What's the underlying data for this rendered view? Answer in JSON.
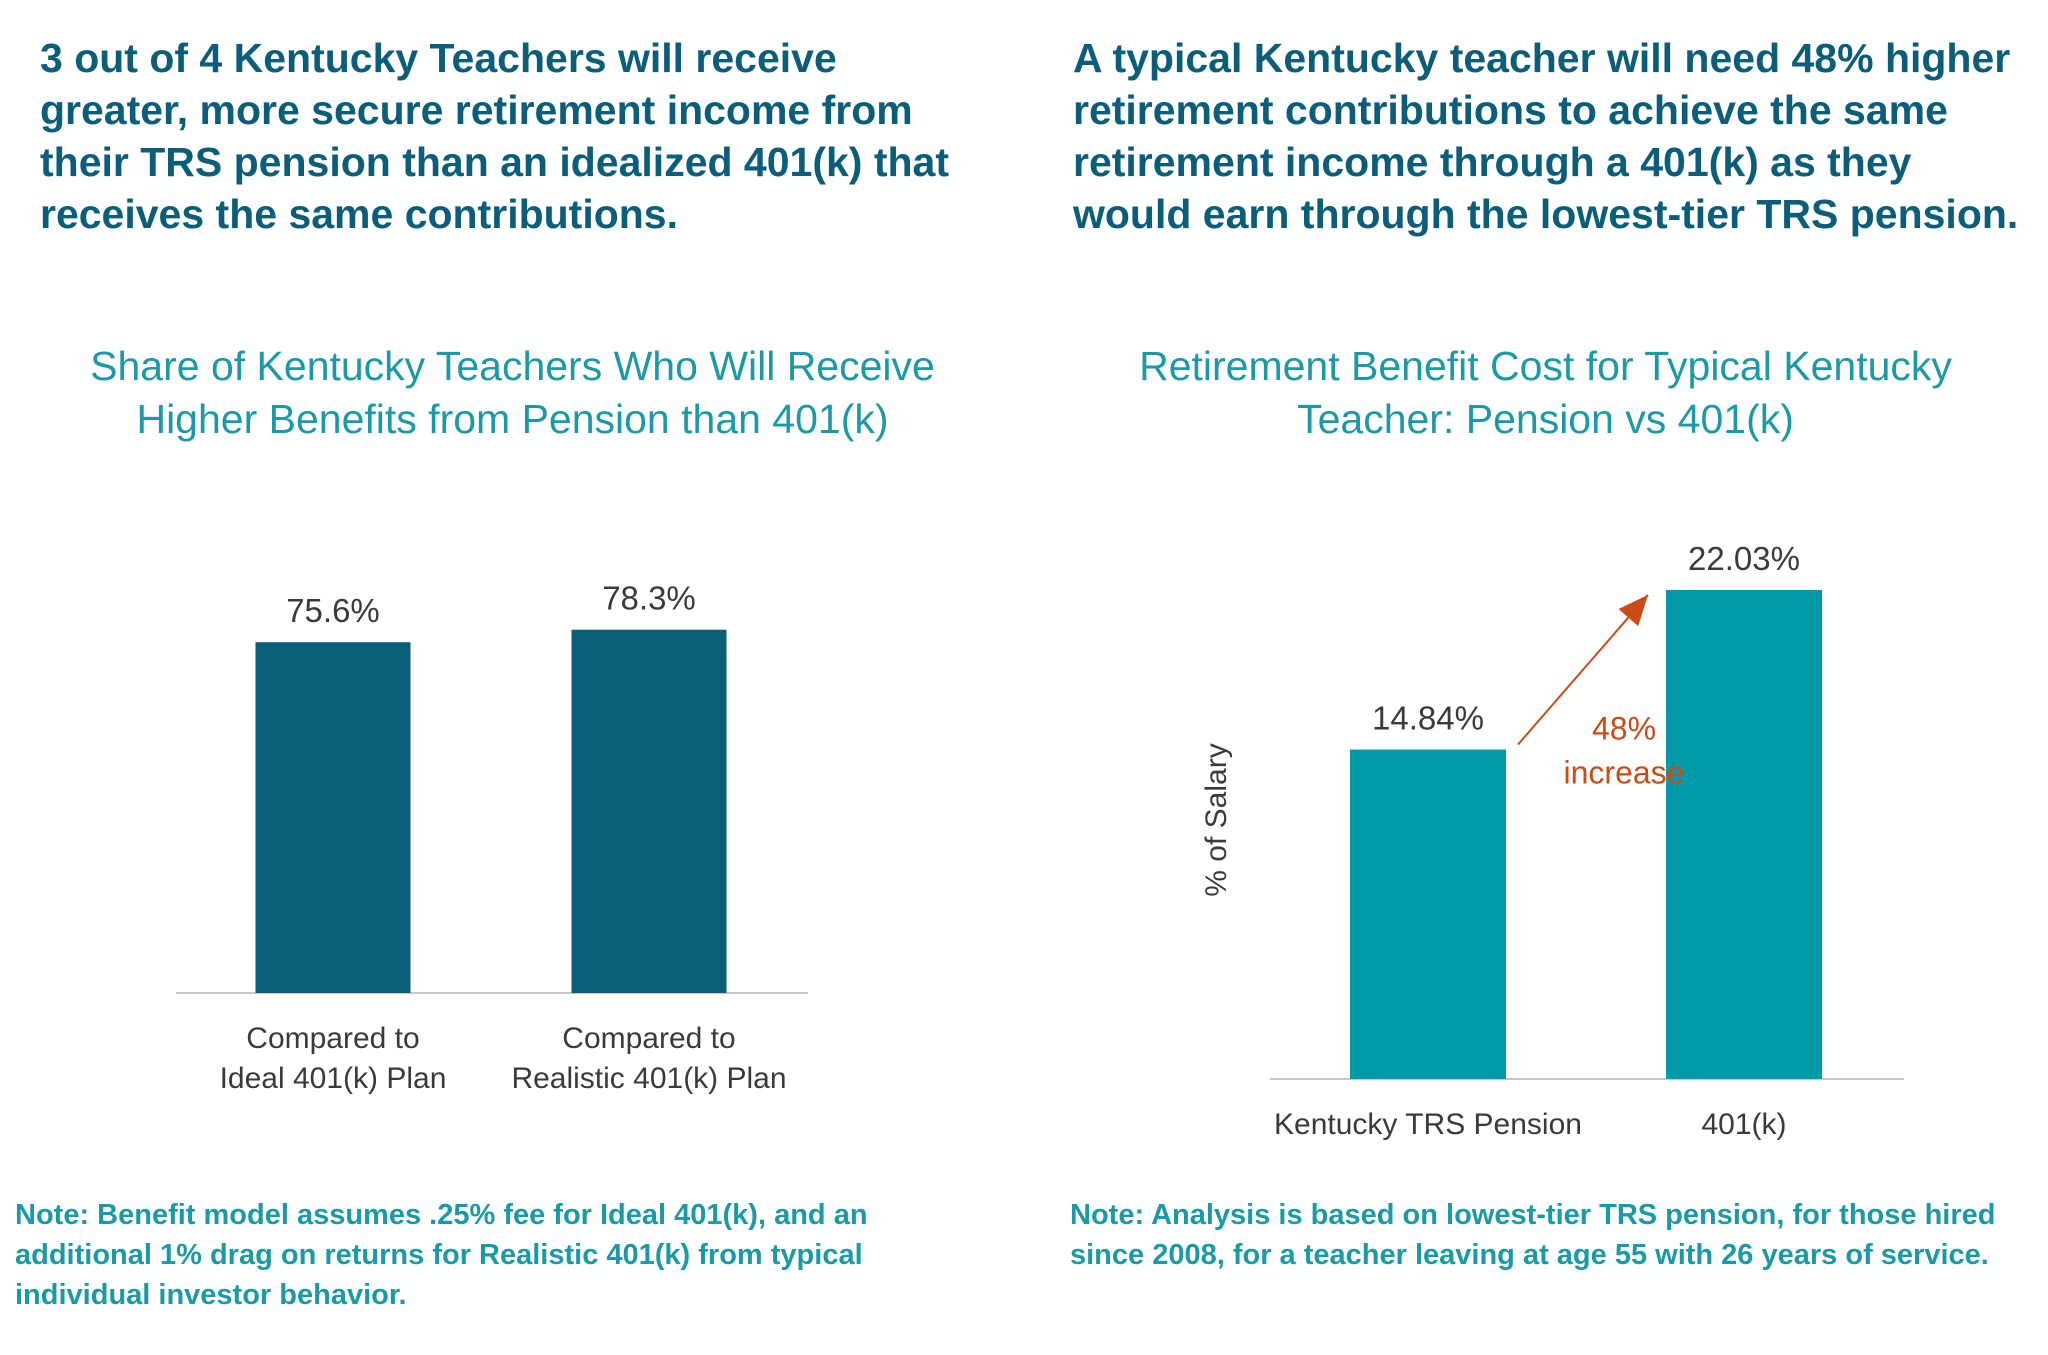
{
  "headlines": {
    "left": "3 out of 4 Kentucky Teachers will receive greater, more secure retirement income from their TRS pension than an idealized 401(k) that receives the same contributions.",
    "right": "A typical Kentucky teacher will need 48% higher retirement contributions to achieve the same retirement income through a 401(k) as they would earn through the lowest-tier TRS pension."
  },
  "notes": {
    "left": "Note: Benefit model assumes .25% fee for Ideal 401(k), and an additional 1% drag on returns for Realistic 401(k) from typical individual investor behavior.",
    "right": "Note: Analysis is based on lowest-tier TRS pension, for those hired since 2008, for a teacher leaving at age 55 with 26 years of service."
  },
  "colors": {
    "headline": "#0b5e7a",
    "chart_title": "#1a9aa6",
    "bar_left": "#0b5e7a",
    "bar_right": "#0099a8",
    "annotation": "#cc4a15",
    "baseline": "#c8c8c8"
  },
  "chart_data": [
    {
      "type": "bar",
      "title": "Share of Kentucky Teachers Who Will Receive Higher Benefits from Pension than 401(k)",
      "categories": [
        [
          "Compared to",
          "Ideal 401(k) Plan"
        ],
        [
          "Compared to",
          "Realistic 401(k) Plan"
        ]
      ],
      "values": [
        75.6,
        78.3
      ],
      "value_labels": [
        "75.6%",
        "78.3%"
      ],
      "xlabel": "",
      "ylabel": "",
      "ylim": [
        0,
        100
      ],
      "grid": false
    },
    {
      "type": "bar",
      "title": "Retirement Benefit Cost for Typical Kentucky Teacher: Pension vs 401(k)",
      "categories": [
        [
          "Kentucky TRS Pension"
        ],
        [
          "401(k)"
        ]
      ],
      "values": [
        14.84,
        22.03
      ],
      "value_labels": [
        "14.84%",
        "22.03%"
      ],
      "xlabel": "",
      "ylabel": "% of Salary",
      "ylim": [
        0,
        25
      ],
      "grid": false,
      "annotation": {
        "lines": [
          "48%",
          "increase"
        ],
        "from": 0,
        "to": 1
      }
    }
  ]
}
